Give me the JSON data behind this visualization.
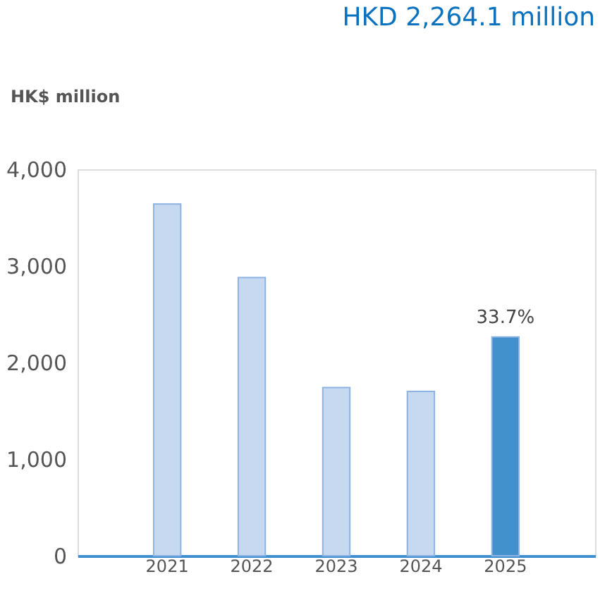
{
  "chart_data": {
    "type": "bar",
    "title": "HKD 2,264.1 million",
    "ylabel": "HK$ million",
    "categories": [
      "2021",
      "2022",
      "2023",
      "2024",
      "2025"
    ],
    "values": [
      3640,
      2880,
      1740,
      1700,
      2264
    ],
    "colors": [
      "#c6d9f0",
      "#c6d9f0",
      "#c6d9f0",
      "#c6d9f0",
      "#4291cc"
    ],
    "ylim": [
      0,
      4000
    ],
    "yticks": [
      0,
      {
        "value": 1000,
        "label": "1,000"
      },
      {
        "value": 2000,
        "label": "2,000"
      },
      {
        "value": 3000,
        "label": "3,000"
      },
      {
        "value": 4000,
        "label": "4,000"
      }
    ],
    "grid": false,
    "annotations": [
      {
        "text": "33.7%",
        "x": "2025",
        "y": 2264
      }
    ]
  }
}
